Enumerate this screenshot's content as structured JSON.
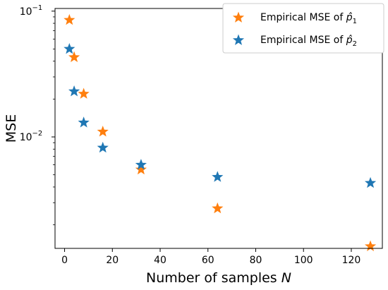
{
  "chart_data": {
    "type": "scatter",
    "title": "",
    "xlabel": "Number of samples",
    "xlabel_var": "N",
    "ylabel": "MSE",
    "yscale": "log",
    "xlim": [
      -4,
      133
    ],
    "ylim": [
      0.0013,
      0.105
    ],
    "xticks": [
      0,
      20,
      40,
      60,
      80,
      100,
      120
    ],
    "yticks": [
      {
        "value": 0.1,
        "base": "10",
        "exp": "−1"
      },
      {
        "value": 0.01,
        "base": "10",
        "exp": "−2"
      }
    ],
    "grid": false,
    "legend_position": "top-right",
    "series": [
      {
        "name": "Empirical MSE of p̂₁",
        "legend_prefix": "Empirical MSE of ",
        "legend_var": "p̂",
        "legend_sub": "1",
        "color": "#ff7f0e",
        "marker": "star",
        "points": [
          {
            "x": 2,
            "y": 0.085
          },
          {
            "x": 4,
            "y": 0.043
          },
          {
            "x": 8,
            "y": 0.022
          },
          {
            "x": 16,
            "y": 0.011
          },
          {
            "x": 32,
            "y": 0.0055
          },
          {
            "x": 64,
            "y": 0.0027
          },
          {
            "x": 128,
            "y": 0.00135
          }
        ]
      },
      {
        "name": "Empirical MSE of p̂₂",
        "legend_prefix": "Empirical MSE of ",
        "legend_var": "p̂",
        "legend_sub": "2",
        "color": "#1f77b4",
        "marker": "star",
        "points": [
          {
            "x": 2,
            "y": 0.05
          },
          {
            "x": 4,
            "y": 0.023
          },
          {
            "x": 8,
            "y": 0.013
          },
          {
            "x": 16,
            "y": 0.0082
          },
          {
            "x": 32,
            "y": 0.006
          },
          {
            "x": 64,
            "y": 0.0048
          },
          {
            "x": 128,
            "y": 0.0043
          }
        ]
      }
    ]
  }
}
